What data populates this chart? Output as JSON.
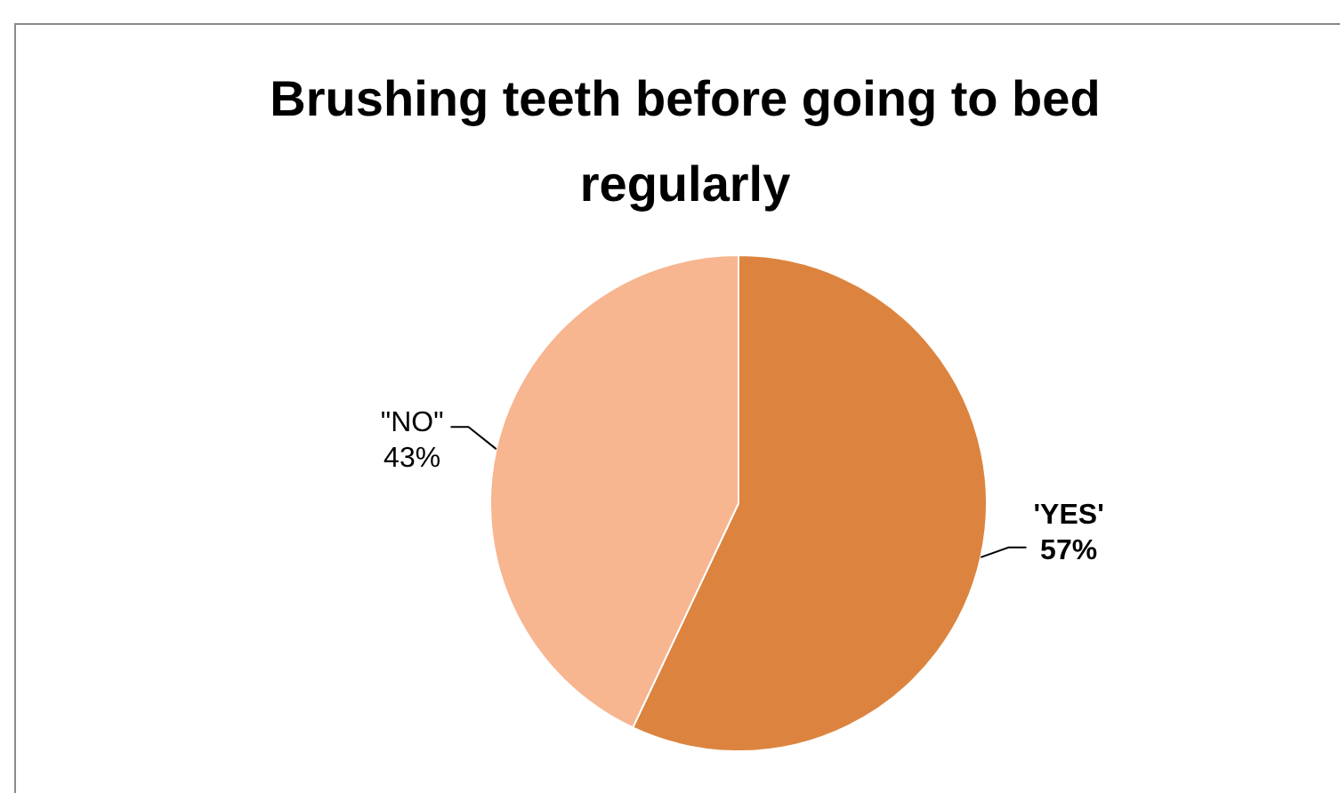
{
  "chart_data": {
    "type": "pie",
    "title": "Brushing teeth before going to bed regularly",
    "categories": [
      "'YES'",
      "\"NO\""
    ],
    "values": [
      57,
      43
    ],
    "colors": [
      "#dc843f",
      "#f7b590"
    ],
    "value_labels": [
      "57%",
      "43%"
    ]
  }
}
